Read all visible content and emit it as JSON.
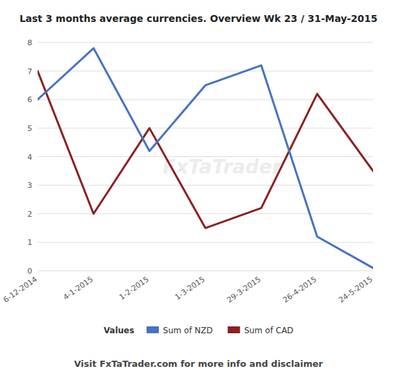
{
  "chart_data": {
    "type": "line",
    "title": "Last 3 months average currencies. Overview Wk 23 / 31-May-2015",
    "subtitle": "Visit FxTaTrader.com for more info and disclaimer",
    "annotation": "FxTaTrader",
    "legend_title": "Values",
    "categories": [
      "6-12-2014",
      "4-1-2015",
      "1-2-2015",
      "1-3-2015",
      "29-3-2015",
      "26-4-2015",
      "24-5-2015"
    ],
    "series": [
      {
        "name": "Sum of NZD",
        "color": "#4472C4",
        "values": [
          6.0,
          7.8,
          4.2,
          6.5,
          7.2,
          1.2,
          0.1
        ]
      },
      {
        "name": "Sum of CAD",
        "color": "#8B2020",
        "values": [
          7.0,
          2.0,
          5.0,
          1.5,
          2.2,
          6.2,
          3.5
        ]
      }
    ],
    "ylim": [
      0,
      8
    ],
    "yticks": [
      0,
      1,
      2,
      3,
      4,
      5,
      6,
      7,
      8
    ],
    "grid": true,
    "legend": "bottom"
  }
}
